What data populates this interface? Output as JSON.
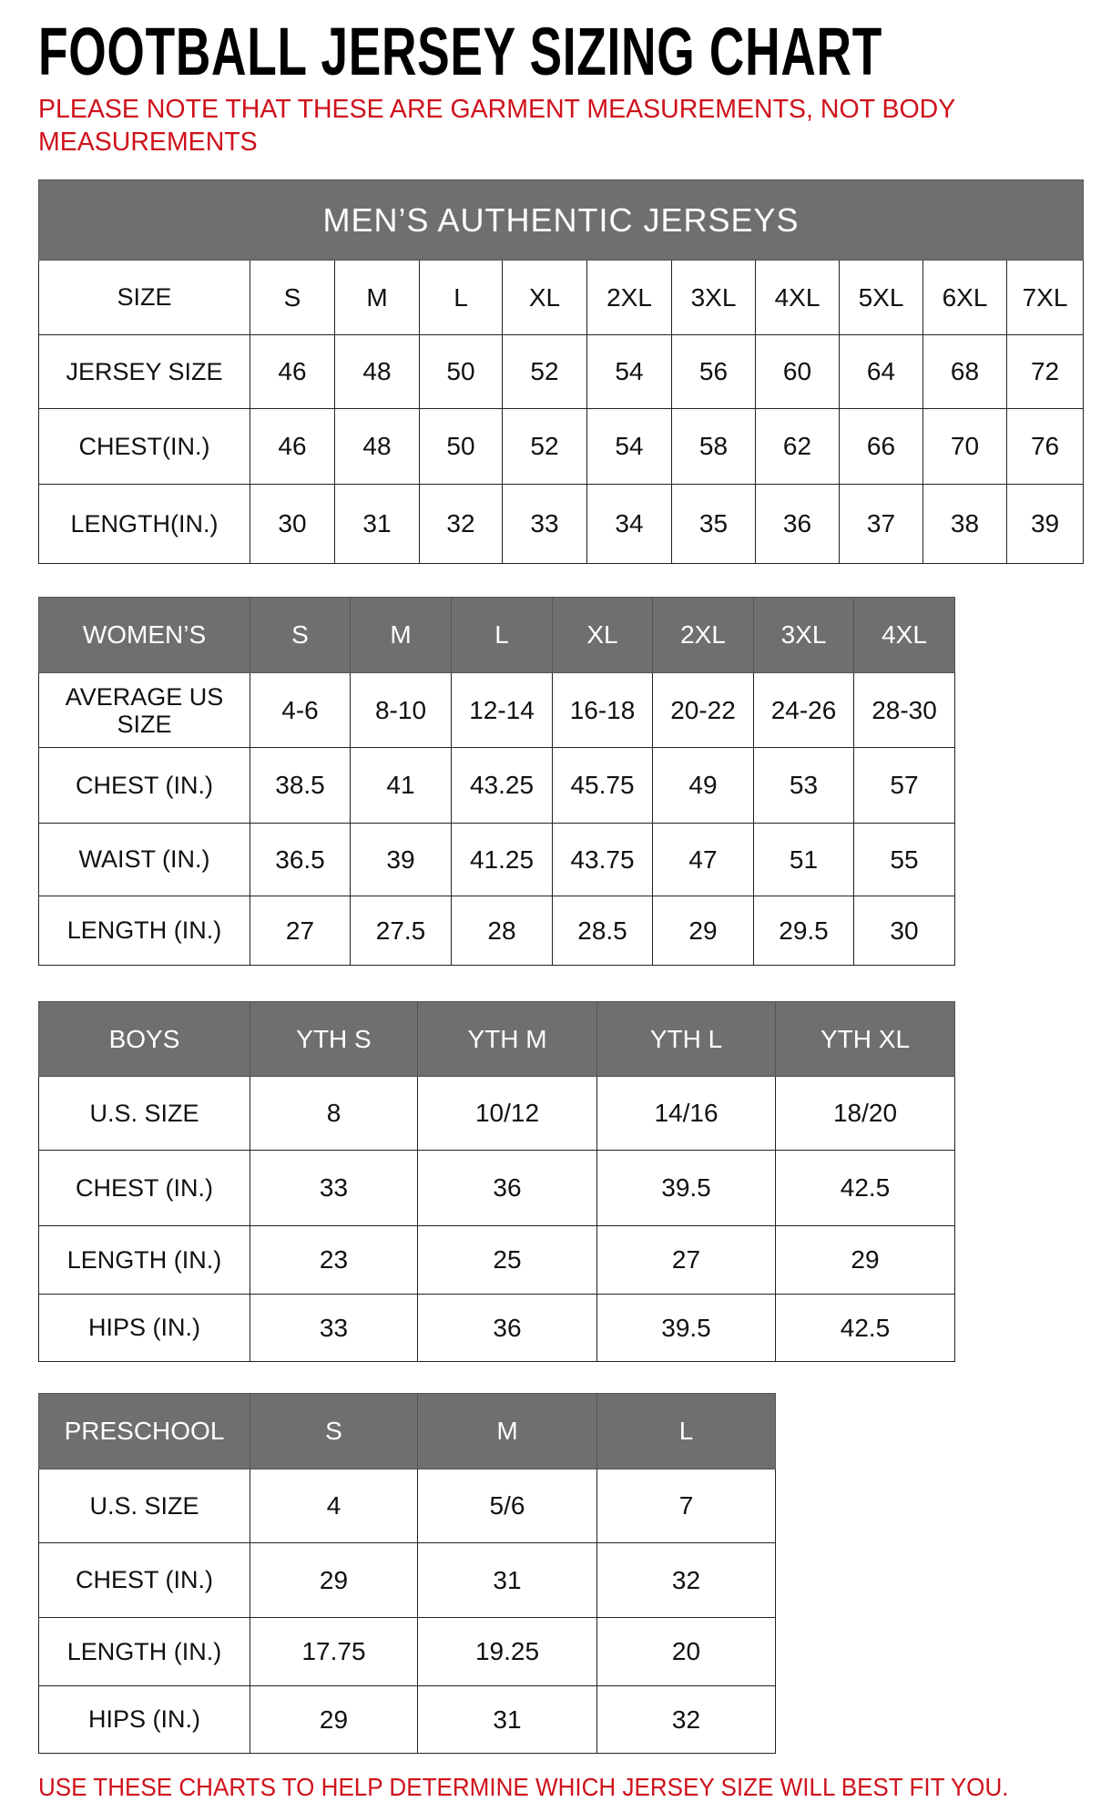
{
  "title": "FOOTBALL JERSEY SIZING CHART",
  "note": "PLEASE NOTE THAT THESE ARE GARMENT MEASUREMENTS, NOT BODY MEASUREMENTS",
  "footer": "USE THESE CHARTS TO HELP DETERMINE WHICH JERSEY SIZE WILL BEST FIT YOU.",
  "colors": {
    "header_bg": "#6f6f6f",
    "note_red": "#d0111b"
  },
  "tables": [
    {
      "name": "mens",
      "caption": "MEN’S AUTHENTIC JERSEYS",
      "header": [
        "SIZE",
        "S",
        "M",
        "L",
        "XL",
        "2XL",
        "3XL",
        "4XL",
        "5XL",
        "6XL",
        "7XL"
      ],
      "rows": [
        [
          "JERSEY SIZE",
          "46",
          "48",
          "50",
          "52",
          "54",
          "56",
          "60",
          "64",
          "68",
          "72"
        ],
        [
          "CHEST(IN.)",
          "46",
          "48",
          "50",
          "52",
          "54",
          "58",
          "62",
          "66",
          "70",
          "76"
        ],
        [
          "LENGTH(IN.)",
          "30",
          "31",
          "32",
          "33",
          "34",
          "35",
          "36",
          "37",
          "38",
          "39"
        ]
      ]
    },
    {
      "name": "womens",
      "header": [
        "WOMEN’S",
        "S",
        "M",
        "L",
        "XL",
        "2XL",
        "3XL",
        "4XL"
      ],
      "rows": [
        [
          "AVERAGE US SIZE",
          "4-6",
          "8-10",
          "12-14",
          "16-18",
          "20-22",
          "24-26",
          "28-30"
        ],
        [
          "CHEST (IN.)",
          "38.5",
          "41",
          "43.25",
          "45.75",
          "49",
          "53",
          "57"
        ],
        [
          "WAIST (IN.)",
          "36.5",
          "39",
          "41.25",
          "43.75",
          "47",
          "51",
          "55"
        ],
        [
          "LENGTH (IN.)",
          "27",
          "27.5",
          "28",
          "28.5",
          "29",
          "29.5",
          "30"
        ]
      ]
    },
    {
      "name": "boys",
      "header": [
        "BOYS",
        "YTH S",
        "YTH M",
        "YTH L",
        "YTH XL"
      ],
      "rows": [
        [
          "U.S. SIZE",
          "8",
          "10/12",
          "14/16",
          "18/20"
        ],
        [
          "CHEST (IN.)",
          "33",
          "36",
          "39.5",
          "42.5"
        ],
        [
          "LENGTH (IN.)",
          "23",
          "25",
          "27",
          "29"
        ],
        [
          "HIPS (IN.)",
          "33",
          "36",
          "39.5",
          "42.5"
        ]
      ]
    },
    {
      "name": "preschool",
      "header": [
        "PRESCHOOL",
        "S",
        "M",
        "L"
      ],
      "rows": [
        [
          "U.S. SIZE",
          "4",
          "5/6",
          "7"
        ],
        [
          "CHEST (IN.)",
          "29",
          "31",
          "32"
        ],
        [
          "LENGTH (IN.)",
          "17.75",
          "19.25",
          "20"
        ],
        [
          "HIPS (IN.)",
          "29",
          "31",
          "32"
        ]
      ]
    }
  ]
}
